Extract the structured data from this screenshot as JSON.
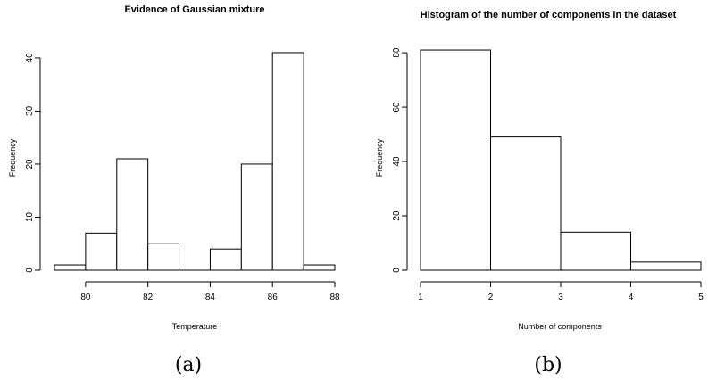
{
  "chart_data": [
    {
      "type": "bar",
      "subtype": "histogram",
      "title": "Evidence of Gaussian mixture",
      "xlabel": "Temperature",
      "ylabel": "Frequency",
      "caption": "(a)",
      "bins": [
        {
          "x0": 79,
          "x1": 80,
          "value": 1
        },
        {
          "x0": 80,
          "x1": 81,
          "value": 7
        },
        {
          "x0": 81,
          "x1": 82,
          "value": 21
        },
        {
          "x0": 82,
          "x1": 83,
          "value": 5
        },
        {
          "x0": 83,
          "x1": 84,
          "value": 0
        },
        {
          "x0": 84,
          "x1": 85,
          "value": 4
        },
        {
          "x0": 85,
          "x1": 86,
          "value": 20
        },
        {
          "x0": 86,
          "x1": 87,
          "value": 41
        },
        {
          "x0": 87,
          "x1": 88,
          "value": 1
        }
      ],
      "xlim": [
        79,
        88
      ],
      "ylim": [
        0,
        42
      ],
      "xticks": [
        80,
        82,
        84,
        86,
        88
      ],
      "yticks": [
        0,
        10,
        20,
        30,
        40
      ],
      "grid": false,
      "legend": "none"
    },
    {
      "type": "bar",
      "subtype": "histogram",
      "title": "Histogram of the number of components in the dataset",
      "xlabel": "Number of components",
      "ylabel": "Frequency",
      "caption": "(b)",
      "bins": [
        {
          "x0": 1,
          "x1": 2,
          "value": 81
        },
        {
          "x0": 2,
          "x1": 3,
          "value": 49
        },
        {
          "x0": 3,
          "x1": 4,
          "value": 14
        },
        {
          "x0": 4,
          "x1": 5,
          "value": 3
        }
      ],
      "xlim": [
        1,
        5
      ],
      "ylim": [
        0,
        82
      ],
      "xticks": [
        1,
        2,
        3,
        4,
        5
      ],
      "yticks": [
        0,
        20,
        40,
        60,
        80
      ],
      "grid": false,
      "legend": "none"
    }
  ]
}
